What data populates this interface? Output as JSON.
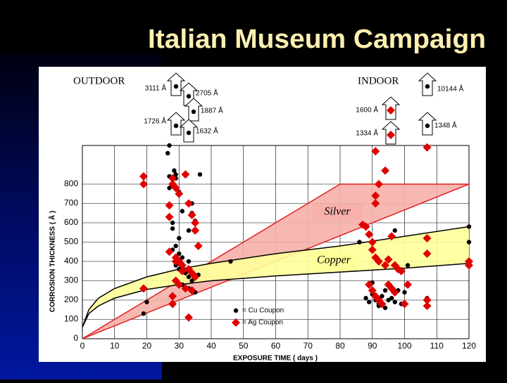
{
  "title": "Italian Museum Campaign",
  "chart_data": {
    "type": "scatter",
    "xlabel": "EXPOSURE TIME ( days )",
    "ylabel": "CORROSION THICKNESS ( Å )",
    "xlim": [
      0,
      120
    ],
    "ylim": [
      0,
      1000
    ],
    "xticks": [
      0,
      10,
      20,
      30,
      40,
      50,
      60,
      70,
      80,
      90,
      100,
      110,
      120
    ],
    "yticks": [
      0,
      100,
      200,
      300,
      400,
      500,
      600,
      700,
      800
    ],
    "grid": true,
    "sections": [
      "OUTDOOR",
      "INDOOR"
    ],
    "bands": [
      {
        "name": "Silver",
        "color": "#f7b0aa",
        "edge": "#e02020",
        "x": [
          0,
          80,
          120
        ],
        "upper": [
          0,
          800,
          800
        ],
        "lower": [
          0,
          533,
          800
        ]
      },
      {
        "name": "Copper",
        "color": "#ffff99",
        "edge": "#000000",
        "x": [
          0,
          2,
          5,
          10,
          20,
          30,
          40,
          60,
          80,
          100,
          120
        ],
        "upper": [
          60,
          150,
          210,
          260,
          320,
          360,
          390,
          440,
          480,
          530,
          580
        ],
        "lower": [
          60,
          130,
          170,
          210,
          255,
          280,
          300,
          325,
          345,
          365,
          390
        ]
      }
    ],
    "series": [
      {
        "name": "= Cu  Coupon",
        "color": "#000000",
        "marker": "circle",
        "x": [
          19,
          20,
          26.5,
          27,
          28.5,
          27,
          29,
          29,
          36.5,
          27,
          30,
          28,
          28,
          31,
          34,
          34,
          35,
          33,
          30,
          29,
          28,
          30,
          31,
          33,
          29,
          30,
          32,
          33,
          34,
          29,
          31,
          33,
          35,
          36,
          46,
          86,
          88,
          89,
          90,
          91,
          92,
          93,
          94,
          95,
          96,
          97,
          98,
          99,
          100,
          97,
          101,
          107,
          120,
          120,
          92,
          90,
          94
        ],
        "values": [
          130,
          190,
          960,
          1000,
          870,
          840,
          850,
          830,
          850,
          780,
          760,
          600,
          570,
          660,
          700,
          650,
          610,
          560,
          520,
          480,
          460,
          440,
          420,
          400,
          380,
          360,
          340,
          320,
          300,
          300,
          280,
          260,
          240,
          330,
          400,
          500,
          210,
          190,
          230,
          200,
          180,
          220,
          250,
          200,
          210,
          190,
          250,
          180,
          240,
          560,
          380,
          210,
          580,
          500,
          170,
          290,
          160
        ],
        "offscale_labels": [
          "3111 Å",
          "2705 Å",
          "1887 Å",
          "1726 Å",
          "1632 Å",
          "10144 Å",
          "1348 Å"
        ]
      },
      {
        "name": "= Ag  Coupon",
        "color": "#e00000",
        "marker": "diamond",
        "x": [
          19,
          19,
          19,
          27,
          27,
          28,
          28,
          29,
          30,
          32,
          33,
          34,
          35,
          35,
          36,
          27,
          29,
          30,
          31,
          33,
          34,
          35,
          29,
          30,
          32,
          34,
          28,
          28,
          33,
          29,
          31,
          88,
          89,
          90,
          90,
          91,
          91,
          92,
          91,
          92,
          94,
          95,
          97,
          98,
          99,
          89,
          90,
          91,
          92,
          93,
          95,
          96,
          97,
          100,
          101,
          107,
          107,
          107,
          107,
          120,
          120,
          91,
          94,
          96,
          87,
          107
        ],
        "values": [
          840,
          800,
          260,
          690,
          630,
          830,
          800,
          780,
          750,
          850,
          700,
          640,
          600,
          560,
          480,
          450,
          420,
          400,
          380,
          360,
          340,
          320,
          300,
          280,
          260,
          250,
          220,
          180,
          110,
          400,
          350,
          580,
          540,
          500,
          460,
          700,
          740,
          800,
          420,
          400,
          380,
          410,
          380,
          360,
          350,
          280,
          250,
          220,
          200,
          180,
          280,
          260,
          240,
          180,
          280,
          520,
          440,
          200,
          170,
          400,
          380,
          970,
          870,
          530,
          590,
          990
        ],
        "offscale_labels": [
          "1600 Å",
          "1334 Å"
        ]
      }
    ]
  }
}
